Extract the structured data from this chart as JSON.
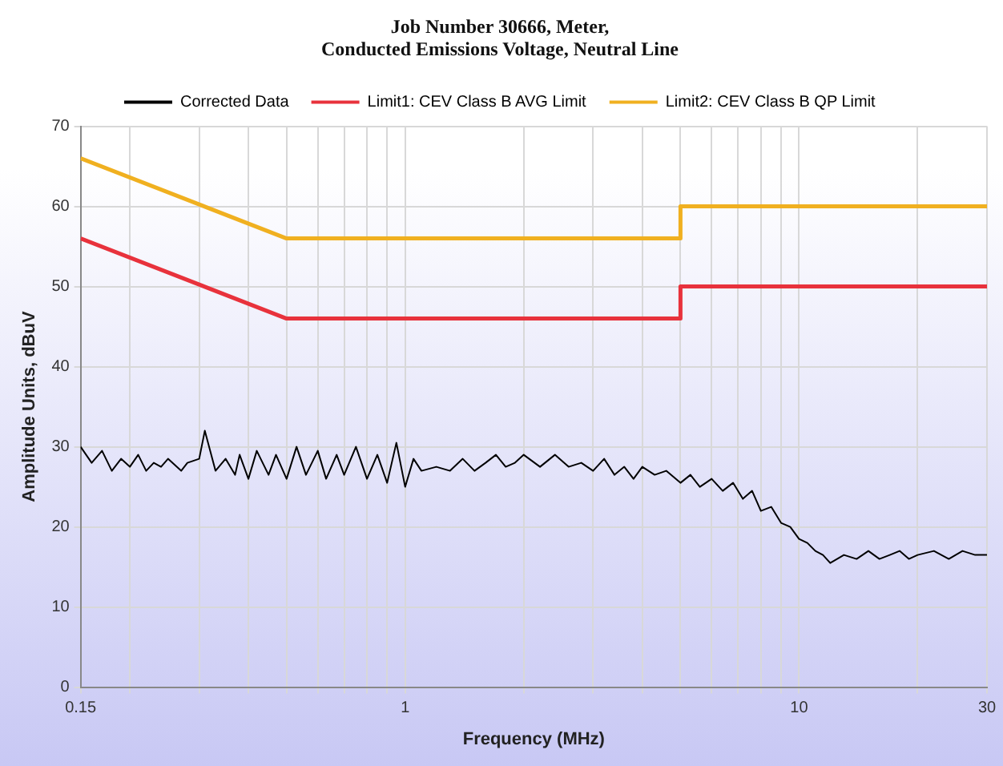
{
  "chart_data": {
    "type": "line",
    "title": "Job Number 30666, Meter,\nConducted Emissions Voltage, Neutral Line",
    "xlabel": "Frequency (MHz)",
    "ylabel": "Amplitude Units, dBuV",
    "log": "x",
    "grid": true,
    "legend": "top",
    "marker": "none",
    "line_style": "solid",
    "xlim": [
      0.15,
      30
    ],
    "ylim": [
      0,
      70
    ],
    "xticks": [
      0.15,
      {
        "value": 0.2,
        "label": null
      },
      {
        "value": 0.3,
        "label": null
      },
      {
        "value": 0.4,
        "label": null
      },
      {
        "value": 0.5,
        "label": null
      },
      {
        "value": 0.6,
        "label": null
      },
      {
        "value": 0.7,
        "label": null
      },
      {
        "value": 0.8,
        "label": null
      },
      {
        "value": 0.9,
        "label": null
      },
      1,
      {
        "value": 2,
        "label": null
      },
      {
        "value": 3,
        "label": null
      },
      {
        "value": 4,
        "label": null
      },
      {
        "value": 5,
        "label": null
      },
      {
        "value": 6,
        "label": null
      },
      {
        "value": 7,
        "label": null
      },
      {
        "value": 8,
        "label": null
      },
      {
        "value": 9,
        "label": null
      },
      10,
      {
        "value": 20,
        "label": null
      },
      30
    ],
    "yticks": [
      0,
      10,
      20,
      30,
      40,
      50,
      60,
      70
    ],
    "series": [
      {
        "name": "Corrected Data",
        "color": "#000000",
        "x": [
          0.15,
          0.16,
          0.17,
          0.18,
          0.19,
          0.2,
          0.21,
          0.22,
          0.23,
          0.24,
          0.25,
          0.27,
          0.28,
          0.3,
          0.31,
          0.33,
          0.35,
          0.37,
          0.38,
          0.4,
          0.42,
          0.45,
          0.47,
          0.5,
          0.53,
          0.56,
          0.6,
          0.63,
          0.67,
          0.7,
          0.75,
          0.8,
          0.85,
          0.9,
          0.95,
          1,
          1.05,
          1.1,
          1.2,
          1.3,
          1.4,
          1.5,
          1.6,
          1.7,
          1.8,
          1.9,
          2,
          2.2,
          2.4,
          2.6,
          2.8,
          3,
          3.2,
          3.4,
          3.6,
          3.8,
          4,
          4.3,
          4.6,
          5,
          5.3,
          5.6,
          6,
          6.4,
          6.8,
          7.2,
          7.6,
          8,
          8.5,
          9,
          9.5,
          10,
          10.5,
          11,
          11.5,
          12,
          13,
          14,
          15,
          16,
          17,
          18,
          19,
          20,
          22,
          24,
          26,
          28,
          30
        ],
        "values": [
          30,
          28,
          29.5,
          27,
          28.5,
          27.5,
          29,
          27,
          28,
          27.5,
          28.5,
          27,
          28,
          28.5,
          32,
          27,
          28.5,
          26.5,
          29,
          26,
          29.5,
          26.5,
          29,
          26,
          30,
          26.5,
          29.5,
          26,
          29,
          26.5,
          30,
          26,
          29,
          25.5,
          30.5,
          25,
          28.5,
          27,
          27.5,
          27,
          28.5,
          27,
          28,
          29,
          27.5,
          28,
          29,
          27.5,
          29,
          27.5,
          28,
          27,
          28.5,
          26.5,
          27.5,
          26,
          27.5,
          26.5,
          27,
          25.5,
          26.5,
          25,
          26,
          24.5,
          25.5,
          23.5,
          24.5,
          22,
          22.5,
          20.5,
          20,
          18.5,
          18,
          17,
          16.5,
          15.5,
          16.5,
          16,
          17,
          16,
          16.5,
          17,
          16,
          16.5,
          17,
          16,
          17,
          16.5,
          16.5
        ]
      },
      {
        "name": "Limit1: CEV Class B AVG Limit",
        "color": "#e8323c",
        "x": [
          0.15,
          0.5,
          5,
          5,
          30
        ],
        "values": [
          56,
          46,
          46,
          50,
          50
        ]
      },
      {
        "name": "Limit2: CEV Class B QP Limit",
        "color": "#f0b020",
        "x": [
          0.15,
          0.5,
          5,
          5,
          30
        ],
        "values": [
          66,
          56,
          56,
          60,
          60
        ]
      }
    ]
  }
}
